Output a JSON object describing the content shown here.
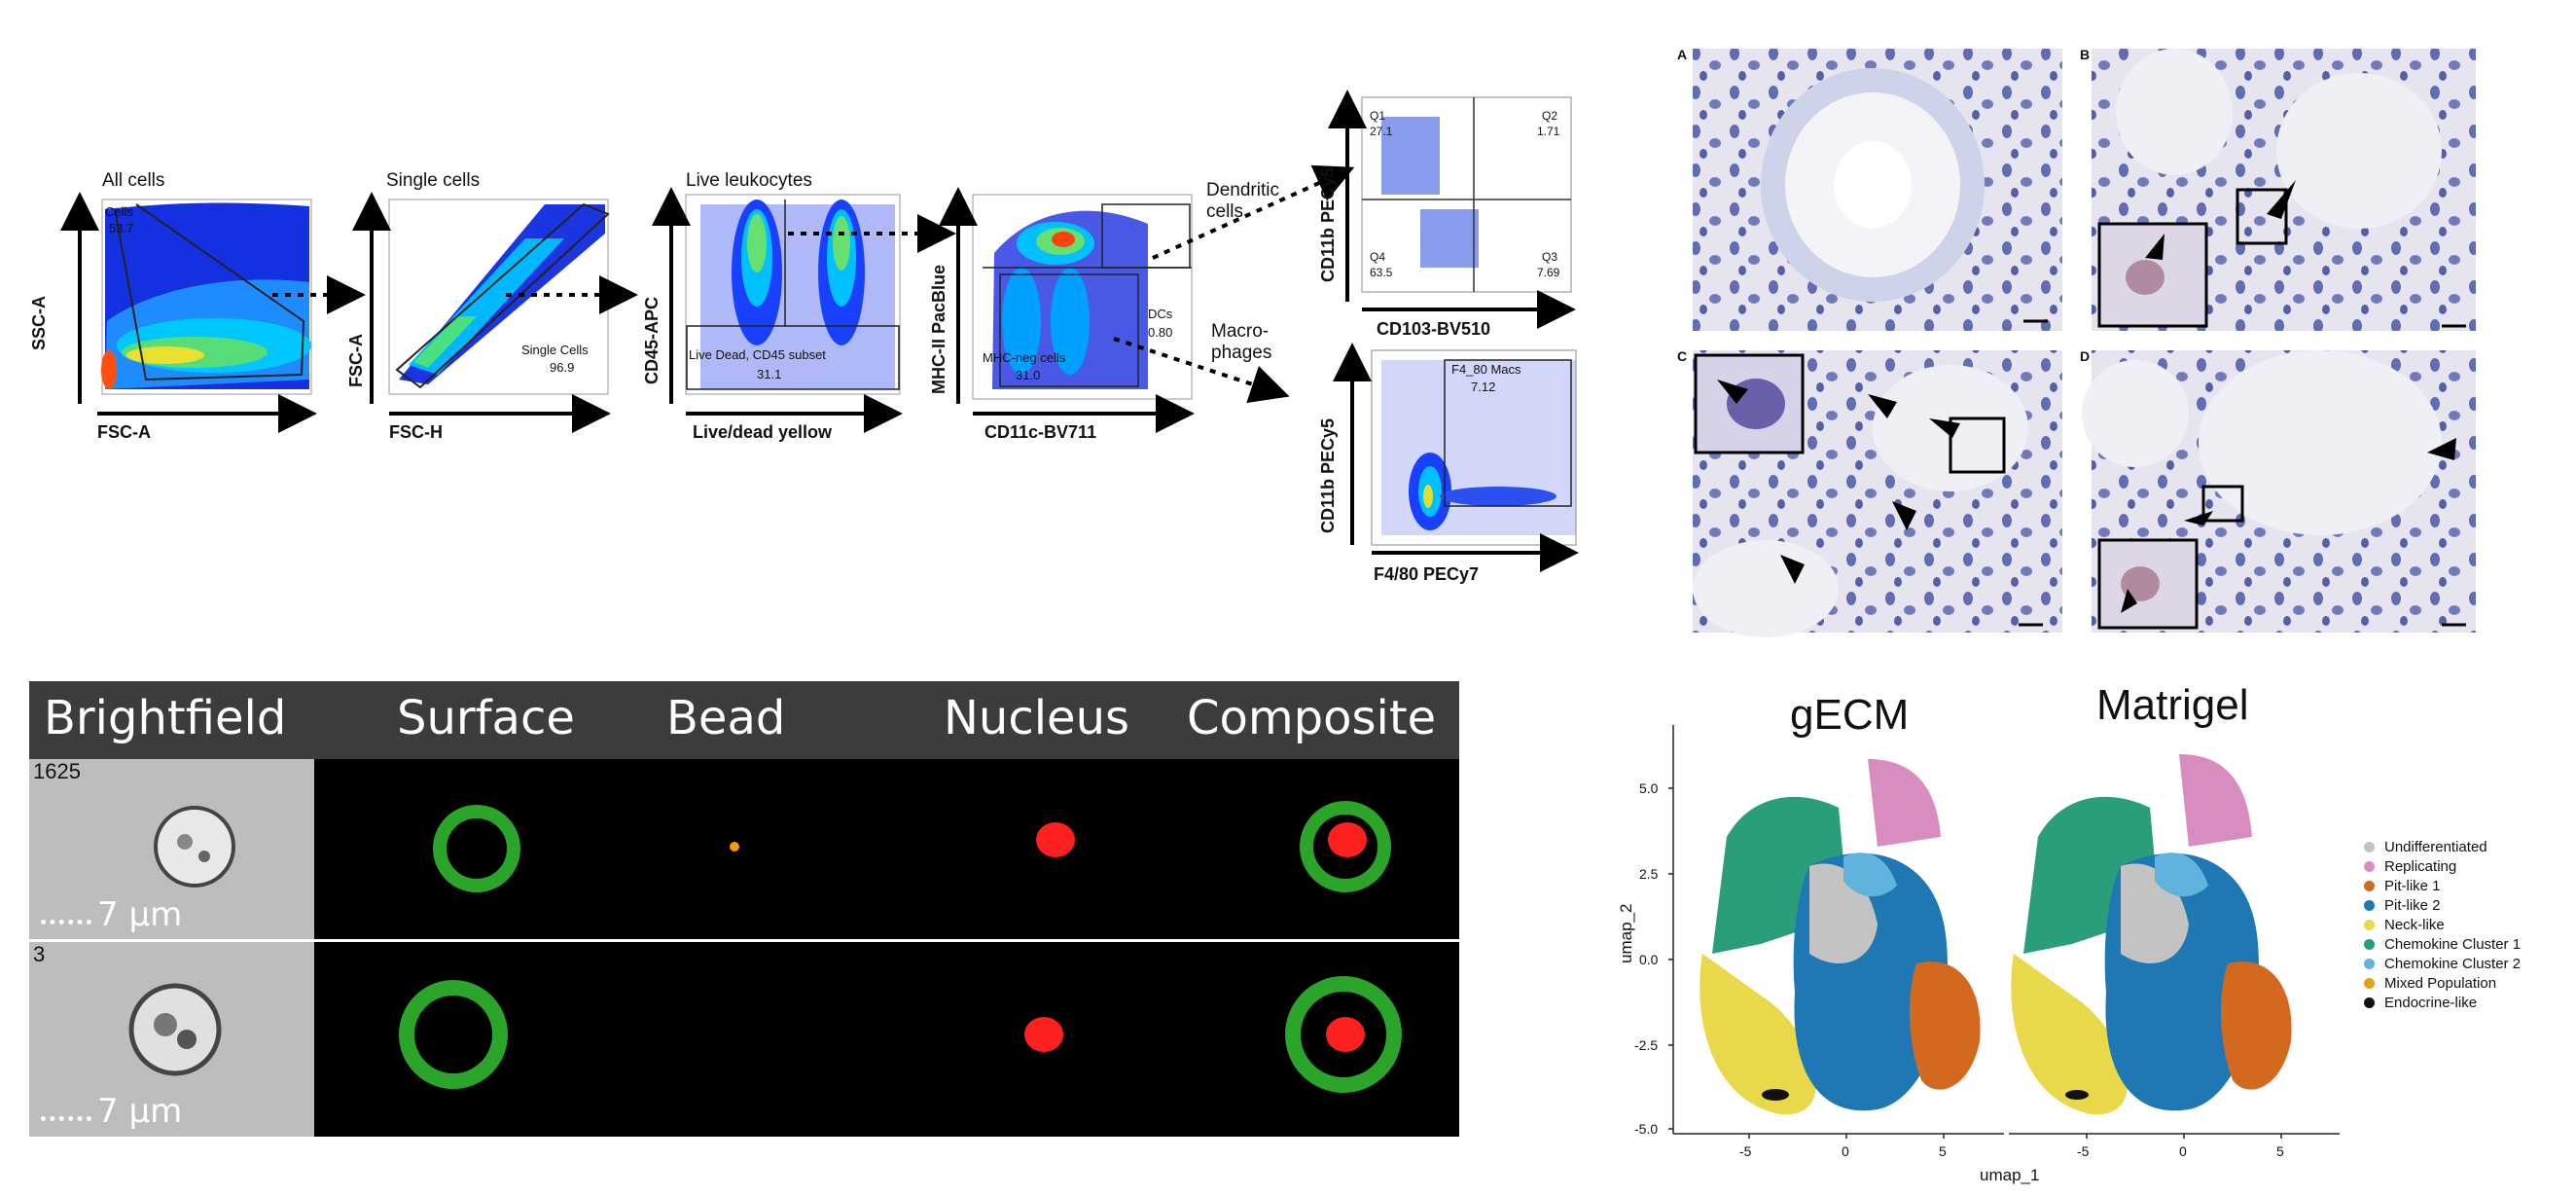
{
  "flow": {
    "gates": [
      {
        "title": "All cells",
        "ylabel": "SSC-A",
        "xlabel": "FSC-A",
        "gate_label": "Cells",
        "gate_value": "53.7"
      },
      {
        "title": "Single cells",
        "ylabel": "FSC-A",
        "xlabel": "FSC-H",
        "gate_label": "Single Cells",
        "gate_value": "96.9"
      },
      {
        "title": "Live leukocytes",
        "ylabel": "CD45-APC",
        "xlabel": "Live/dead yellow",
        "gate_label": "Live Dead, CD45 subset",
        "gate_value": "31.1"
      },
      {
        "title": "",
        "ylabel": "MHC-II PacBlue",
        "xlabel": "CD11c-BV711",
        "gate_label": "MHC-neg cells",
        "gate_value": "31.0",
        "gate2_label": "DCs",
        "gate2_value": "0.80"
      }
    ],
    "dc_label_1": "Dendritic",
    "dc_label_2": "cells",
    "mac_label_1": "Macro-",
    "mac_label_2": "phages",
    "quad": {
      "ylabel": "CD11b PECy5",
      "xlabel": "CD103-BV510",
      "q1": "Q1",
      "q1v": "27.1",
      "q2": "Q2",
      "q2v": "1.71",
      "q3": "Q3",
      "q3v": "7.69",
      "q4": "Q4",
      "q4v": "63.5"
    },
    "mac": {
      "ylabel": "CD11b PECy5",
      "xlabel": "F4/80 PECy7",
      "gate_label": "F4_80 Macs",
      "gate_value": "7.12"
    }
  },
  "histology": {
    "panels": [
      "A",
      "B",
      "C",
      "D"
    ]
  },
  "imaging": {
    "headers": [
      "Brightfield",
      "Surface",
      "Bead",
      "Nucleus",
      "Composite"
    ],
    "rows": [
      {
        "id": "1625",
        "scale": "7 µm"
      },
      {
        "id": "3",
        "scale": "7 µm"
      }
    ]
  },
  "umap": {
    "panel_titles": [
      "gECM",
      "Matrigel"
    ],
    "xlabel": "umap_1",
    "ylabel": "umap_2",
    "yticks": [
      "5.0",
      "2.5",
      "0.0",
      "-2.5",
      "-5.0"
    ],
    "xticks": [
      "-5",
      "0",
      "5"
    ],
    "legend": [
      {
        "name": "Undifferentiated",
        "color": "#c3c3c3"
      },
      {
        "name": "Replicating",
        "color": "#d98cc0"
      },
      {
        "name": "Pit-like 1",
        "color": "#d2691e"
      },
      {
        "name": "Pit-like 2",
        "color": "#1f77b4"
      },
      {
        "name": "Neck-like",
        "color": "#e9d84a"
      },
      {
        "name": "Chemokine Cluster 1",
        "color": "#2a9d7a"
      },
      {
        "name": "Chemokine Cluster 2",
        "color": "#5fb3dc"
      },
      {
        "name": "Mixed Population",
        "color": "#e6a11a"
      },
      {
        "name": "Endocrine-like",
        "color": "#111111"
      }
    ]
  }
}
